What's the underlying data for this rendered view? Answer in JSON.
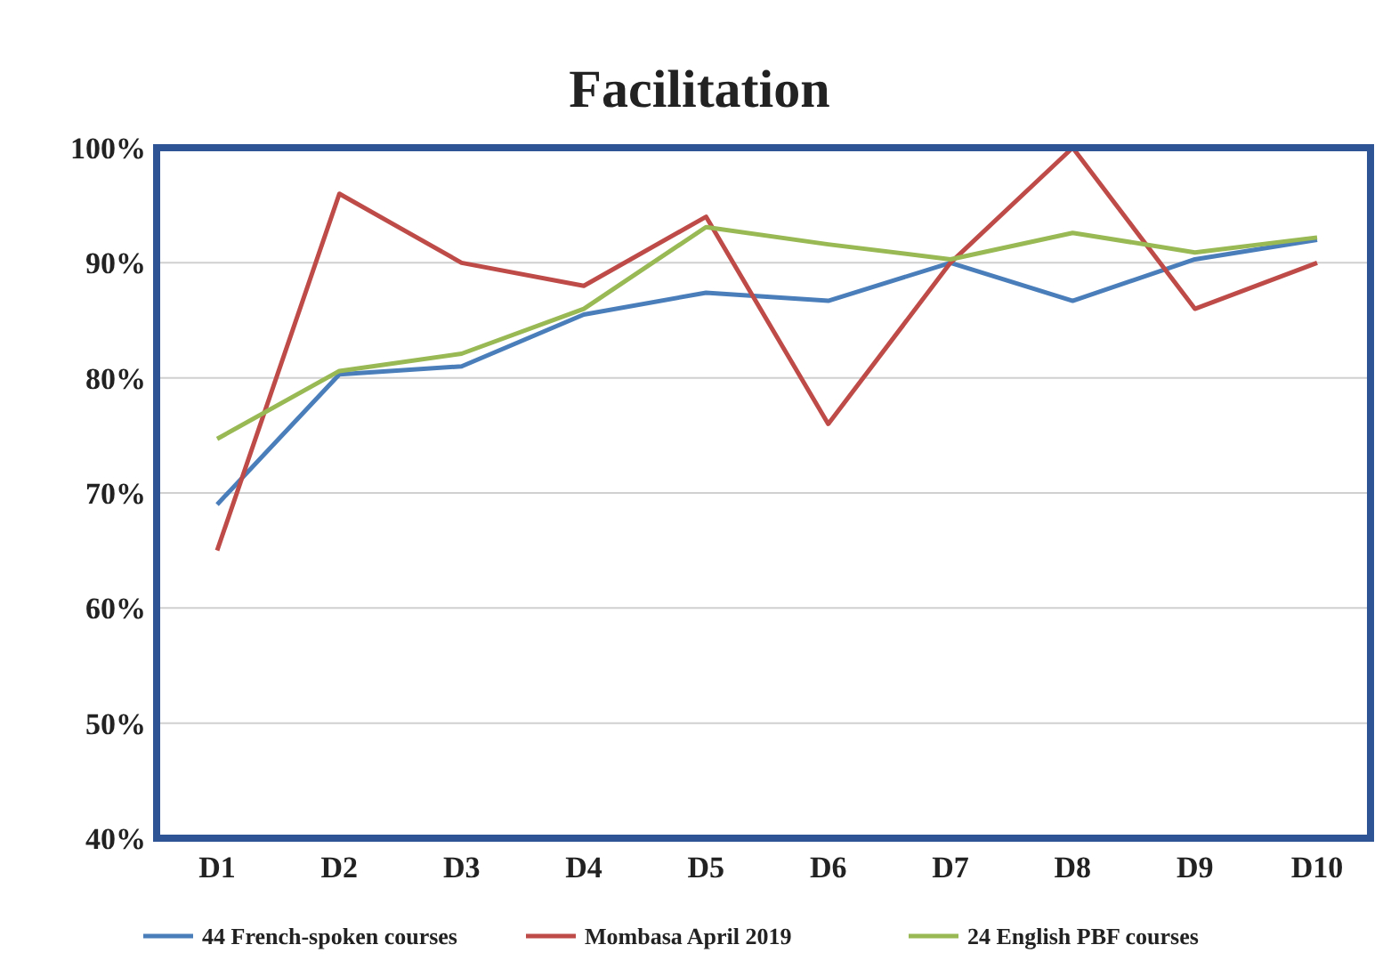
{
  "chart_data": {
    "type": "line",
    "title": "Facilitation",
    "categories": [
      "D1",
      "D2",
      "D3",
      "D4",
      "D5",
      "D6",
      "D7",
      "D8",
      "D9",
      "D10"
    ],
    "series": [
      {
        "name": "44 French-spoken courses",
        "color": "#4a7ebb",
        "values": [
          69,
          80.3,
          81,
          85.5,
          87.4,
          86.7,
          90,
          86.7,
          90.3,
          92
        ]
      },
      {
        "name": "Mombasa April 2019",
        "color": "#be4b48",
        "values": [
          65,
          96,
          90,
          88,
          94,
          76,
          90,
          100,
          86,
          90
        ]
      },
      {
        "name": "24 English PBF courses",
        "color": "#98b954",
        "values": [
          74.7,
          80.6,
          82.1,
          86,
          93.1,
          91.6,
          90.3,
          92.6,
          90.9,
          92.2
        ]
      }
    ],
    "ylim": [
      40,
      100
    ],
    "yticks": [
      {
        "value": 40,
        "label": "40%"
      },
      {
        "value": 50,
        "label": "50%"
      },
      {
        "value": 60,
        "label": "60%"
      },
      {
        "value": 70,
        "label": "70%"
      },
      {
        "value": 80,
        "label": "80%"
      },
      {
        "value": 90,
        "label": "90%"
      },
      {
        "value": 100,
        "label": "100%"
      }
    ],
    "grid": "y",
    "legend": "bottom",
    "marker": "none",
    "line_style": "solid"
  }
}
